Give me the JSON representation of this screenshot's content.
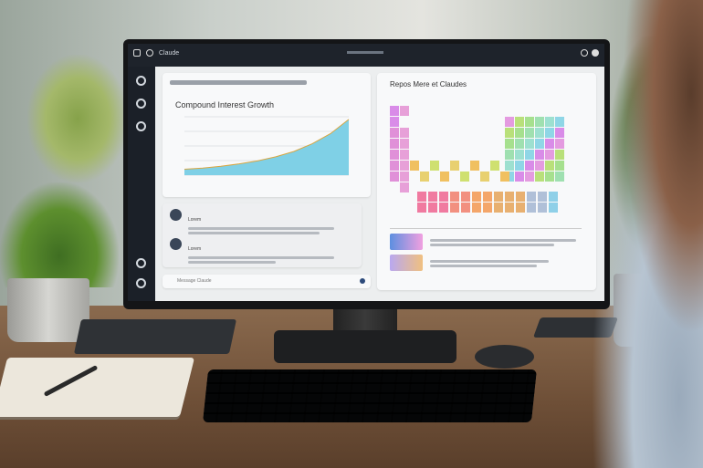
{
  "app": {
    "title": "Claude"
  },
  "left_panel": {
    "heading": "Compound Interest Growth",
    "chart_data": {
      "type": "area",
      "title": "Compound Interest Growth",
      "values": [
        1,
        1.2,
        1.5,
        1.9,
        2.4,
        3.1,
        4.0,
        5.3,
        7.0,
        9.4
      ]
    },
    "messages": [
      {
        "label": "Lorem"
      },
      {
        "label": "Lorem"
      }
    ],
    "input_placeholder": "Message Claude"
  },
  "right_panel": {
    "heading": "Repos Mere et Claudes"
  },
  "colors": {
    "topbar": "#1e232b",
    "accent": "#3aa9d0",
    "sidebar": "#1b2028"
  }
}
